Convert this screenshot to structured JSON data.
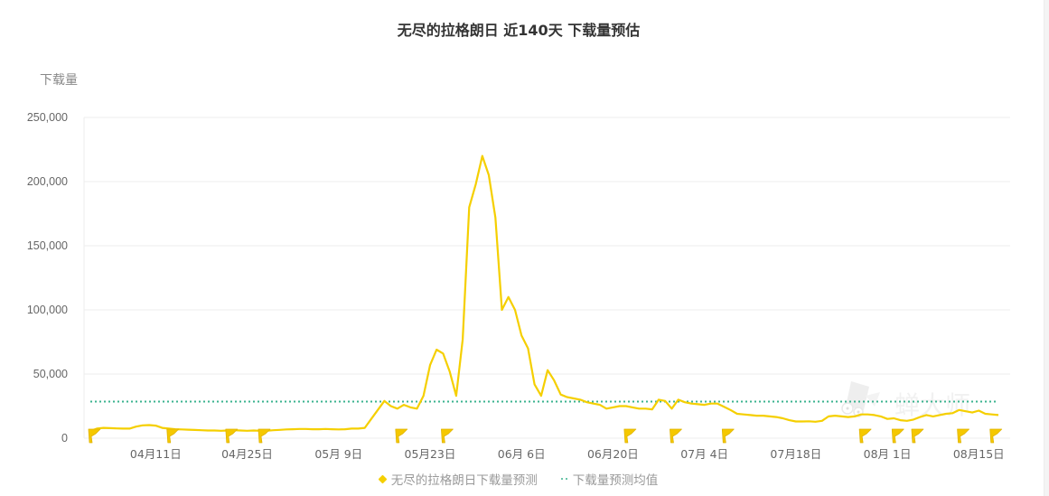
{
  "title": "无尽的拉格朗日 近140天 下载量预估",
  "y_axis_label": "下载量",
  "legend": [
    {
      "label": "无尽的拉格朗日下载量预测",
      "color": "#f5cf00",
      "marker": "diamond"
    },
    {
      "label": "下载量预测均值",
      "color": "#3bb38f",
      "marker": "dotted-line"
    }
  ],
  "watermark": "蝉大师",
  "chart_data": {
    "type": "line",
    "title": "无尽的拉格朗日 近140天 下载量预估",
    "xlabel": "",
    "ylabel": "下载量",
    "ylim": [
      0,
      250000
    ],
    "y_ticks": [
      "0",
      "50,000",
      "100,000",
      "150,000",
      "200,000",
      "250,000"
    ],
    "y_tick_values": [
      0,
      50000,
      100000,
      150000,
      200000,
      250000
    ],
    "x_tick_labels": [
      "04月11日",
      "04月25日",
      "05月 9日",
      "05月23日",
      "06月 6日",
      "06月20日",
      "07月 4日",
      "07月18日",
      "08月 1日",
      "08月15日"
    ],
    "x_tick_day_index": [
      10,
      24,
      38,
      52,
      66,
      80,
      94,
      108,
      122,
      136
    ],
    "grid": true,
    "legend_position": "bottom",
    "days": 140,
    "series": [
      {
        "name": "无尽的拉格朗日下载量预测",
        "color": "#f5cf00",
        "values": [
          5500,
          7500,
          8000,
          7800,
          7600,
          7500,
          7500,
          9000,
          10000,
          10200,
          9800,
          8000,
          7500,
          7000,
          6800,
          6600,
          6400,
          6200,
          6000,
          6000,
          5800,
          6000,
          6200,
          6000,
          5800,
          6000,
          5800,
          5800,
          6200,
          6500,
          6800,
          7000,
          7200,
          7200,
          7000,
          7000,
          7200,
          7000,
          6800,
          7000,
          7500,
          7500,
          8000,
          15000,
          22000,
          29000,
          25000,
          23000,
          26000,
          24000,
          23000,
          33000,
          57000,
          69000,
          66000,
          52000,
          33000,
          77000,
          180000,
          198000,
          220000,
          205000,
          172000,
          100000,
          110000,
          100000,
          80000,
          70000,
          42000,
          33000,
          53000,
          45000,
          34000,
          32000,
          31000,
          30000,
          28000,
          27000,
          26000,
          23000,
          24000,
          25000,
          25000,
          24000,
          23000,
          23000,
          22500,
          30000,
          29000,
          23000,
          30000,
          28000,
          27000,
          26500,
          26000,
          27000,
          27000,
          24500,
          22000,
          19000,
          18500,
          18000,
          17500,
          17500,
          17000,
          16500,
          15500,
          14000,
          13000,
          13000,
          13200,
          12800,
          13500,
          17000,
          17500,
          17000,
          16500,
          17000,
          18500,
          18500,
          18000,
          17000,
          15000,
          15500,
          14000,
          13500,
          14500,
          16500,
          18000,
          17000,
          18000,
          19000,
          19500,
          22000,
          21000,
          20000,
          21500,
          19000,
          18500,
          18000
        ]
      },
      {
        "name": "下载量预测均值",
        "color": "#3bb38f",
        "values_constant": 28500
      }
    ],
    "annotation_flags_day_index": [
      0,
      12,
      21,
      26,
      47,
      54,
      82,
      89,
      97,
      118,
      123,
      126,
      133,
      138
    ]
  }
}
